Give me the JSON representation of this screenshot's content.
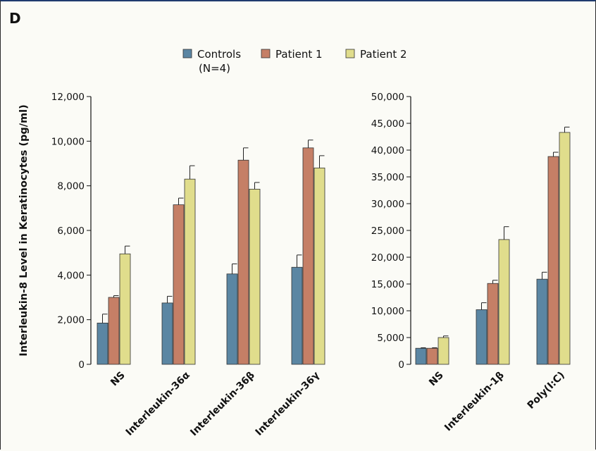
{
  "panel_label": "D",
  "colors": {
    "Controls": "#5b86a3",
    "Patient 1": "#c57f66",
    "Patient 2": "#e0dd8c",
    "stroke": "#333333"
  },
  "legend": [
    {
      "name": "Controls",
      "sub": "(N=4)"
    },
    {
      "name": "Patient 1",
      "sub": ""
    },
    {
      "name": "Patient 2",
      "sub": ""
    }
  ],
  "ylabel": "Interleukin-8 Level in Keratinocytes (pg/ml)",
  "chart_data": [
    {
      "type": "bar",
      "categories": [
        "NS",
        "Interleukin-36α",
        "Interleukin-36β",
        "Interleukin-36γ"
      ],
      "ylim": [
        0,
        12000
      ],
      "yticks": [
        0,
        2000,
        4000,
        6000,
        8000,
        10000,
        12000
      ],
      "ytick_labels": [
        "0",
        "2,000",
        "4,000",
        "6,000",
        "8,000",
        "10,000",
        "12,000"
      ],
      "ylabel": "Interleukin-8 Level in Keratinocytes (pg/ml)",
      "series": [
        {
          "name": "Controls",
          "values": [
            1850,
            2750,
            4050,
            4350
          ],
          "errors": [
            400,
            300,
            450,
            550
          ]
        },
        {
          "name": "Patient 1",
          "values": [
            3000,
            7150,
            9150,
            9700
          ],
          "errors": [
            80,
            300,
            550,
            350
          ]
        },
        {
          "name": "Patient 2",
          "values": [
            4950,
            8300,
            7850,
            8800
          ],
          "errors": [
            350,
            600,
            300,
            550
          ]
        }
      ]
    },
    {
      "type": "bar",
      "categories": [
        "NS",
        "Interleukin-1β",
        "Poly(I:C)"
      ],
      "ylim": [
        0,
        50000
      ],
      "yticks": [
        0,
        5000,
        10000,
        15000,
        20000,
        25000,
        30000,
        35000,
        40000,
        45000,
        50000
      ],
      "ytick_labels": [
        "0",
        "5,000",
        "10,000",
        "15,000",
        "20,000",
        "25,000",
        "30,000",
        "35,000",
        "40,000",
        "45,000",
        "50,000"
      ],
      "series": [
        {
          "name": "Controls",
          "values": [
            3000,
            10200,
            15900
          ],
          "errors": [
            100,
            1300,
            1300
          ]
        },
        {
          "name": "Patient 1",
          "values": [
            3000,
            15100,
            38800
          ],
          "errors": [
            100,
            600,
            800
          ]
        },
        {
          "name": "Patient 2",
          "values": [
            5000,
            23300,
            43300
          ],
          "errors": [
            300,
            2400,
            1000
          ]
        }
      ]
    }
  ]
}
